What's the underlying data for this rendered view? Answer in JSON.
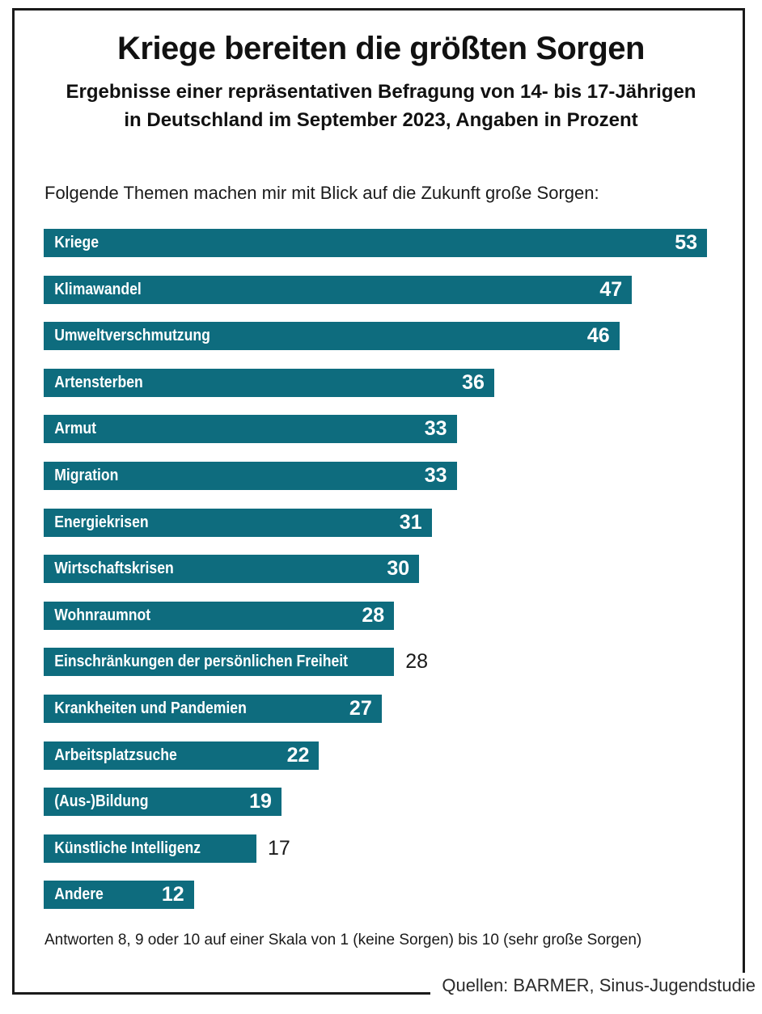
{
  "chart_data": {
    "type": "bar",
    "orientation": "horizontal",
    "title": "Kriege bereiten die größten Sorgen",
    "subtitle_line1": "Ergebnisse einer repräsentativen Befragung von 14- bis 17-Jährigen",
    "subtitle_line2": "in Deutschland im September 2023, Angaben in Prozent",
    "question": "Folgende Themen machen mir mit Blick auf die Zukunft große Sorgen:",
    "categories": [
      "Kriege",
      "Klimawandel",
      "Umweltverschmutzung",
      "Artensterben",
      "Armut",
      "Migration",
      "Energiekrisen",
      "Wirtschaftskrisen",
      "Wohnraumnot",
      "Einschränkungen der persönlichen Freiheit",
      "Krankheiten und Pandemien",
      "Arbeitsplatzsuche",
      "(Aus-)Bildung",
      "Künstliche Intelligenz",
      "Andere"
    ],
    "values": [
      53,
      47,
      46,
      36,
      33,
      33,
      31,
      30,
      28,
      28,
      27,
      22,
      19,
      17,
      12
    ],
    "value_label_outside": [
      false,
      false,
      false,
      false,
      false,
      false,
      false,
      false,
      false,
      true,
      false,
      false,
      false,
      true,
      false
    ],
    "xmax": 53,
    "grid": false,
    "legend": false,
    "footnote": "Antworten 8, 9 oder 10 auf einer Skala von 1 (keine Sorgen) bis 10 (sehr große Sorgen)",
    "source": "Quellen: BARMER, Sinus-Jugendstudie",
    "colors": {
      "bar": "#0e6c7e",
      "value_inside": "#ffffff",
      "value_outside": "#1a1a1a",
      "text": "#1a1a1a",
      "frame_border": "#1a1a1a",
      "background": "#ffffff"
    }
  }
}
